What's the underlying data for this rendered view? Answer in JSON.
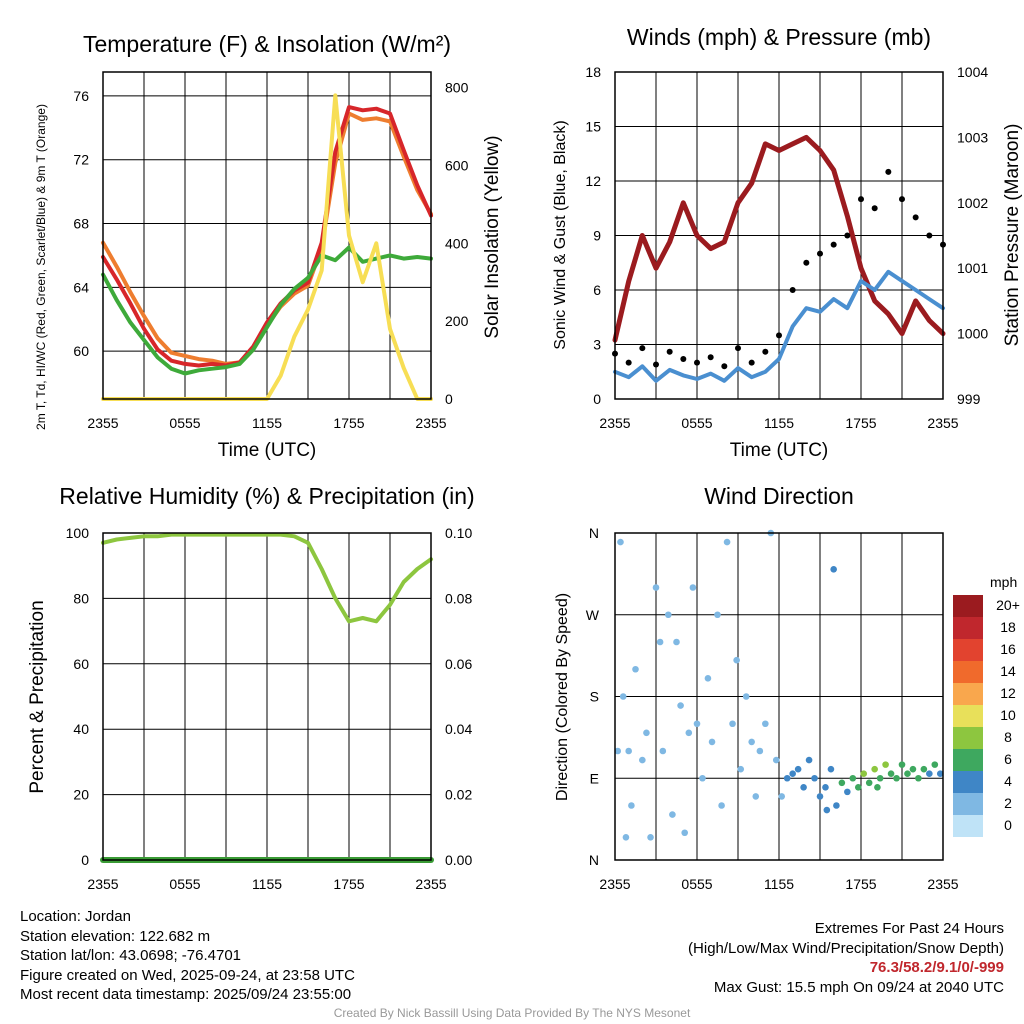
{
  "chart_data": [
    {
      "id": "temp",
      "type": "line",
      "title": "Temperature (F) & Insolation (W/m²)",
      "xlabel": "Time (UTC)",
      "ylabel_left": "2m T, Td, HI/WC (Red, Green, Scarlet/Blue) & 9m T (Orange)",
      "ylabel_right": "Solar Insolation (Yellow)",
      "xticks": [
        "2355",
        "0555",
        "1155",
        "1755",
        "2355"
      ],
      "ylim_left": [
        57,
        77.5
      ],
      "yticks_left": [
        60,
        64,
        68,
        72,
        76
      ],
      "ylim_right": [
        0,
        840
      ],
      "yticks_right": [
        0,
        200,
        400,
        600,
        800
      ],
      "series": [
        {
          "name": "9m T",
          "color": "#ee7d2f",
          "axis": "left",
          "x": [
            0,
            1,
            2,
            3,
            4,
            5,
            6,
            7,
            8,
            9,
            10,
            11,
            12,
            13,
            14,
            15,
            16,
            17,
            18,
            19,
            20,
            21,
            22,
            23,
            24
          ],
          "values": [
            66.8,
            65.3,
            63.7,
            62.2,
            60.8,
            59.9,
            59.7,
            59.5,
            59.4,
            59.2,
            59.3,
            60.2,
            61.6,
            62.8,
            63.6,
            64.1,
            66.5,
            71.8,
            74.9,
            74.5,
            74.6,
            74.4,
            72.2,
            70.1,
            68.6
          ]
        },
        {
          "name": "2m T",
          "color": "#d7262a",
          "axis": "left",
          "x": [
            0,
            1,
            2,
            3,
            4,
            5,
            6,
            7,
            8,
            9,
            10,
            11,
            12,
            13,
            14,
            15,
            16,
            17,
            18,
            19,
            20,
            21,
            22,
            23,
            24
          ],
          "values": [
            65.9,
            64.5,
            63.0,
            61.4,
            60.1,
            59.4,
            59.2,
            59.1,
            59.2,
            59.1,
            59.3,
            60.3,
            61.8,
            63.0,
            63.8,
            64.3,
            66.8,
            72.5,
            75.3,
            75.1,
            75.2,
            74.9,
            72.6,
            70.4,
            68.5
          ]
        },
        {
          "name": "Td",
          "color": "#3eaa3a",
          "axis": "left",
          "x": [
            0,
            1,
            2,
            3,
            4,
            5,
            6,
            7,
            8,
            9,
            10,
            11,
            12,
            13,
            14,
            15,
            16,
            17,
            18,
            19,
            20,
            21,
            22,
            23,
            24
          ],
          "values": [
            64.8,
            63.2,
            61.8,
            60.7,
            59.6,
            58.9,
            58.6,
            58.8,
            58.9,
            59.0,
            59.2,
            60.1,
            61.5,
            62.9,
            63.9,
            64.6,
            66.0,
            65.7,
            66.5,
            65.6,
            65.8,
            66.0,
            65.8,
            65.9,
            65.8
          ]
        },
        {
          "name": "Solar Insolation",
          "color": "#f7de55",
          "axis": "right",
          "x": [
            0,
            1,
            2,
            3,
            4,
            5,
            6,
            7,
            8,
            9,
            10,
            11,
            12,
            13,
            14,
            15,
            16,
            17,
            18,
            19,
            20,
            21,
            22,
            23,
            24
          ],
          "values": [
            0,
            0,
            0,
            0,
            0,
            0,
            0,
            0,
            0,
            0,
            0,
            0,
            0,
            60,
            160,
            230,
            330,
            780,
            420,
            300,
            400,
            180,
            80,
            0,
            0
          ]
        }
      ]
    },
    {
      "id": "wind",
      "type": "line",
      "title": "Winds (mph) & Pressure (mb)",
      "xlabel": "Time (UTC)",
      "ylabel_left": "Sonic Wind & Gust (Blue, Black)",
      "ylabel_right": "Station Pressure (Maroon)",
      "xticks": [
        "2355",
        "0555",
        "1155",
        "1755",
        "2355"
      ],
      "ylim_left": [
        0,
        18
      ],
      "yticks_left": [
        0,
        3,
        6,
        9,
        12,
        15,
        18
      ],
      "ylim_right": [
        999,
        1004
      ],
      "yticks_right": [
        999,
        1000,
        1001,
        1002,
        1003,
        1004
      ],
      "series": [
        {
          "name": "Station Pressure",
          "color": "#9b1b1f",
          "axis": "right",
          "x": [
            0,
            1,
            2,
            3,
            4,
            5,
            6,
            7,
            8,
            9,
            10,
            11,
            12,
            13,
            14,
            15,
            16,
            17,
            18,
            19,
            20,
            21,
            22,
            23,
            24
          ],
          "values": [
            999.9,
            1000.8,
            1001.5,
            1001.0,
            1001.4,
            1002.0,
            1001.5,
            1001.3,
            1001.4,
            1002.0,
            1002.3,
            1002.9,
            1002.8,
            1002.9,
            1003.0,
            1002.8,
            1002.5,
            1001.8,
            1001.0,
            1000.5,
            1000.3,
            1000.0,
            1000.5,
            1000.2,
            1000.0
          ]
        },
        {
          "name": "Sonic Wind",
          "color": "#4a8fd0",
          "axis": "left",
          "x": [
            0,
            1,
            2,
            3,
            4,
            5,
            6,
            7,
            8,
            9,
            10,
            11,
            12,
            13,
            14,
            15,
            16,
            17,
            18,
            19,
            20,
            21,
            22,
            23,
            24
          ],
          "values": [
            1.5,
            1.2,
            1.8,
            1.0,
            1.6,
            1.3,
            1.1,
            1.4,
            1.0,
            1.7,
            1.2,
            1.5,
            2.2,
            4.0,
            5.0,
            4.8,
            5.5,
            5.0,
            6.5,
            6.0,
            7.0,
            6.5,
            6.0,
            5.5,
            5.0
          ]
        },
        {
          "name": "Gust",
          "color": "#000000",
          "axis": "left",
          "x": [
            0,
            1,
            2,
            3,
            4,
            5,
            6,
            7,
            8,
            9,
            10,
            11,
            12,
            13,
            14,
            15,
            16,
            17,
            18,
            19,
            20,
            21,
            22,
            23,
            24
          ],
          "values": [
            2.5,
            2.0,
            2.8,
            1.9,
            2.6,
            2.2,
            2.0,
            2.3,
            1.8,
            2.8,
            2.0,
            2.6,
            3.5,
            6.0,
            7.5,
            8.0,
            8.5,
            9.0,
            11.0,
            10.5,
            12.5,
            11.0,
            10.0,
            9.0,
            8.5
          ]
        }
      ]
    },
    {
      "id": "rh",
      "type": "line",
      "title": "Relative Humidity (%) & Precipitation (in)",
      "xlabel": "",
      "ylabel_left": "Percent & Precipitation",
      "xticks": [
        "2355",
        "0555",
        "1155",
        "1755",
        "2355"
      ],
      "ylim_left": [
        0,
        100
      ],
      "yticks_left": [
        0,
        20,
        40,
        60,
        80,
        100
      ],
      "ylim_right": [
        0,
        0.1
      ],
      "yticks_right": [
        "0.00",
        "0.02",
        "0.04",
        "0.06",
        "0.08",
        "0.10"
      ],
      "series": [
        {
          "name": "Relative Humidity",
          "color": "#8dc63f",
          "axis": "left",
          "x": [
            0,
            1,
            2,
            3,
            4,
            5,
            6,
            7,
            8,
            9,
            10,
            11,
            12,
            13,
            14,
            15,
            16,
            17,
            18,
            19,
            20,
            21,
            22,
            23,
            24
          ],
          "values": [
            97,
            98,
            98.5,
            99,
            99,
            99.5,
            99.5,
            99.5,
            99.5,
            99.5,
            99.5,
            99.5,
            99.5,
            99.5,
            99,
            97,
            89,
            80,
            73,
            74,
            73,
            78,
            85,
            89,
            92
          ]
        },
        {
          "name": "Precipitation",
          "color": "#3a9b35",
          "axis": "right",
          "x": [
            0,
            24
          ],
          "values": [
            0,
            0
          ]
        }
      ]
    },
    {
      "id": "dir",
      "type": "scatter",
      "title": "Wind Direction",
      "xlabel": "",
      "ylabel_left": "Direction (Colored By Speed)",
      "xticks": [
        "2355",
        "0555",
        "1155",
        "1755",
        "2355"
      ],
      "yticks": [
        "N",
        "E",
        "S",
        "W",
        "N"
      ],
      "ylim_left": [
        0,
        360
      ],
      "legend_title": "mph",
      "legend_labels": [
        "20+",
        "18",
        "16",
        "14",
        "12",
        "10",
        "8",
        "6",
        "4",
        "2",
        "0"
      ],
      "legend_colors": [
        "#9b1b1f",
        "#c0272d",
        "#e2432f",
        "#f06a2c",
        "#f9a74d",
        "#e8e05a",
        "#8dc63f",
        "#3ea85f",
        "#3f86c6",
        "#7fb8e3",
        "#bfe3f7"
      ],
      "points": [
        [
          0.2,
          120,
          1
        ],
        [
          0.4,
          350,
          1
        ],
        [
          0.6,
          180,
          2
        ],
        [
          0.8,
          25,
          2
        ],
        [
          1.0,
          120,
          1
        ],
        [
          1.2,
          60,
          1
        ],
        [
          1.5,
          210,
          1
        ],
        [
          2.0,
          110,
          2
        ],
        [
          2.3,
          140,
          1
        ],
        [
          2.6,
          25,
          1
        ],
        [
          3.0,
          300,
          1
        ],
        [
          3.3,
          240,
          1
        ],
        [
          3.5,
          120,
          2
        ],
        [
          3.9,
          270,
          1
        ],
        [
          4.2,
          50,
          1
        ],
        [
          4.5,
          240,
          1
        ],
        [
          4.8,
          170,
          1
        ],
        [
          5.1,
          30,
          1
        ],
        [
          5.4,
          140,
          1
        ],
        [
          5.7,
          300,
          1
        ],
        [
          6.0,
          150,
          2
        ],
        [
          6.4,
          90,
          1
        ],
        [
          6.8,
          200,
          1
        ],
        [
          7.1,
          130,
          1
        ],
        [
          7.5,
          270,
          1
        ],
        [
          7.8,
          60,
          1
        ],
        [
          8.2,
          350,
          1
        ],
        [
          8.6,
          150,
          2
        ],
        [
          8.9,
          220,
          1
        ],
        [
          9.2,
          100,
          1
        ],
        [
          9.6,
          180,
          1
        ],
        [
          10.0,
          130,
          2
        ],
        [
          10.3,
          70,
          1
        ],
        [
          10.6,
          120,
          1
        ],
        [
          11.0,
          150,
          1
        ],
        [
          11.4,
          360,
          1
        ],
        [
          11.8,
          110,
          2
        ],
        [
          12.2,
          70,
          2
        ],
        [
          12.6,
          90,
          3
        ],
        [
          13.0,
          95,
          3
        ],
        [
          13.4,
          100,
          3
        ],
        [
          13.8,
          80,
          3
        ],
        [
          14.2,
          110,
          4
        ],
        [
          14.6,
          90,
          3
        ],
        [
          15.0,
          70,
          4
        ],
        [
          15.4,
          80,
          4
        ],
        [
          15.8,
          100,
          3
        ],
        [
          16.2,
          60,
          4
        ],
        [
          16.6,
          85,
          5
        ],
        [
          17.0,
          75,
          4
        ],
        [
          17.4,
          90,
          5
        ],
        [
          17.8,
          80,
          6
        ],
        [
          18.2,
          95,
          7
        ],
        [
          18.6,
          85,
          6
        ],
        [
          19.0,
          100,
          7
        ],
        [
          19.4,
          90,
          6
        ],
        [
          19.8,
          105,
          7
        ],
        [
          20.2,
          95,
          6
        ],
        [
          20.6,
          90,
          6
        ],
        [
          21.0,
          105,
          6
        ],
        [
          21.4,
          95,
          5
        ],
        [
          21.8,
          100,
          6
        ],
        [
          22.2,
          90,
          5
        ],
        [
          22.6,
          100,
          5
        ],
        [
          23.0,
          95,
          4
        ],
        [
          23.4,
          105,
          5
        ],
        [
          23.8,
          95,
          4
        ],
        [
          16.0,
          320,
          4
        ],
        [
          15.5,
          55,
          4
        ],
        [
          19.2,
          80,
          6
        ]
      ]
    }
  ],
  "info": {
    "location": "Location: Jordan",
    "elevation": "Station elevation: 122.682 m",
    "latlon": "Station lat/lon: 43.0698; -76.4701",
    "created": "Figure created on Wed, 2025-09-24, at 23:58 UTC",
    "recent": "Most recent data timestamp: 2025/09/24 23:55:00"
  },
  "extremes": {
    "title": "Extremes For Past 24 Hours",
    "subtitle": "(High/Low/Max Wind/Precipitation/Snow Depth)",
    "values": "76.3/58.2/9.1/0/-999",
    "gust": "Max Gust: 15.5 mph On 09/24 at 2040 UTC"
  },
  "credit": "Created By Nick Bassill Using Data Provided By The NYS Mesonet"
}
